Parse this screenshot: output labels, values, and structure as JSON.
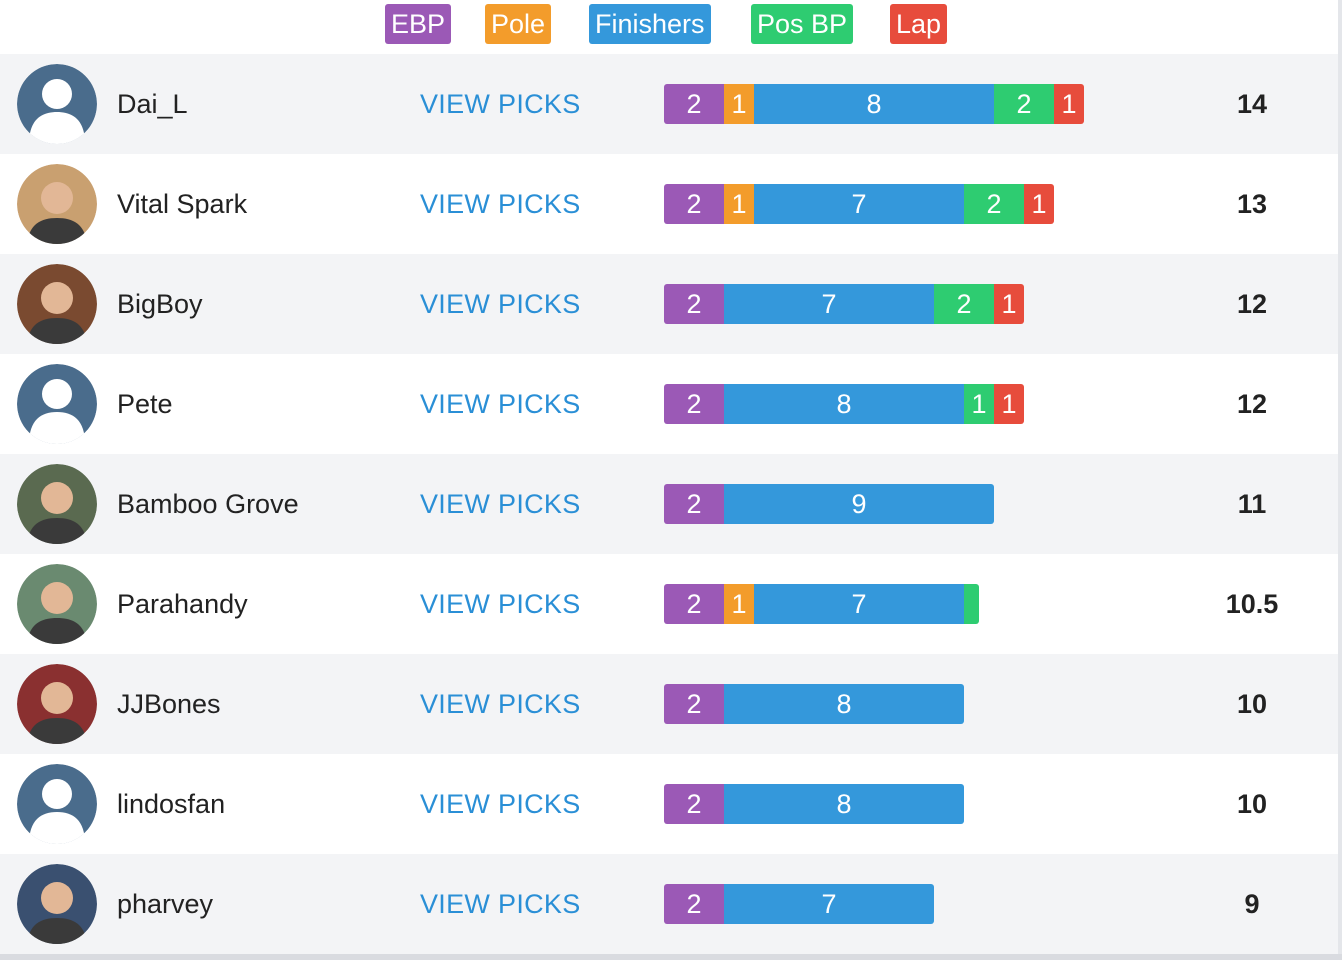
{
  "colors": {
    "ebp": "#9b59b6",
    "pole": "#f39c2b",
    "finishers": "#3498db",
    "posbp": "#2ecc71",
    "lap": "#e74c3c",
    "link": "#2a8fd6"
  },
  "legend": [
    {
      "key": "ebp",
      "label": "EBP"
    },
    {
      "key": "pole",
      "label": "Pole"
    },
    {
      "key": "finishers",
      "label": "Finishers"
    },
    {
      "key": "posbp",
      "label": "Pos BP"
    },
    {
      "key": "lap",
      "label": "Lap"
    }
  ],
  "view_label": "VIEW PICKS",
  "players": [
    {
      "name": "Dai_L",
      "avatar": "default-avatar",
      "total": "14",
      "breakdown": {
        "ebp": 2,
        "pole": 1,
        "finishers": 8,
        "posbp": 2,
        "lap": 1
      }
    },
    {
      "name": "Vital Spark",
      "avatar": "photo-avatar",
      "total": "13",
      "breakdown": {
        "ebp": 2,
        "pole": 1,
        "finishers": 7,
        "posbp": 2,
        "lap": 1
      }
    },
    {
      "name": "BigBoy",
      "avatar": "photo-avatar",
      "total": "12",
      "breakdown": {
        "ebp": 2,
        "pole": 0,
        "finishers": 7,
        "posbp": 2,
        "lap": 1
      }
    },
    {
      "name": "Pete",
      "avatar": "default-avatar",
      "total": "12",
      "breakdown": {
        "ebp": 2,
        "pole": 0,
        "finishers": 8,
        "posbp": 1,
        "lap": 1
      }
    },
    {
      "name": "Bamboo Grove",
      "avatar": "photo-avatar",
      "total": "11",
      "breakdown": {
        "ebp": 2,
        "pole": 0,
        "finishers": 9,
        "posbp": 0,
        "lap": 0
      }
    },
    {
      "name": "Parahandy",
      "avatar": "photo-avatar",
      "total": "10.5",
      "breakdown": {
        "ebp": 2,
        "pole": 1,
        "finishers": 7,
        "posbp": 0.5,
        "lap": 0
      }
    },
    {
      "name": "JJBones",
      "avatar": "photo-avatar",
      "total": "10",
      "breakdown": {
        "ebp": 2,
        "pole": 0,
        "finishers": 8,
        "posbp": 0,
        "lap": 0
      }
    },
    {
      "name": "lindosfan",
      "avatar": "default-avatar",
      "total": "10",
      "breakdown": {
        "ebp": 2,
        "pole": 0,
        "finishers": 8,
        "posbp": 0,
        "lap": 0
      }
    },
    {
      "name": "pharvey",
      "avatar": "photo-avatar",
      "total": "9",
      "breakdown": {
        "ebp": 2,
        "pole": 0,
        "finishers": 7,
        "posbp": 0,
        "lap": 0
      }
    }
  ]
}
